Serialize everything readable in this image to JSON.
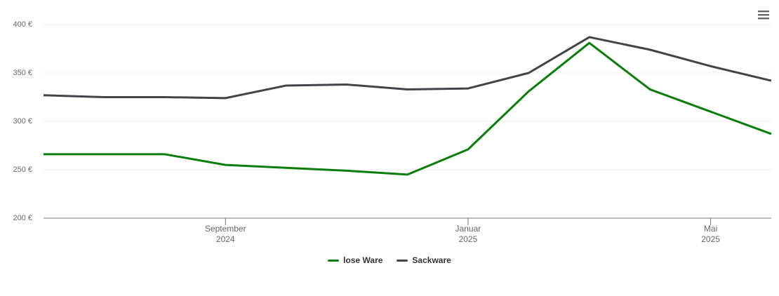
{
  "chart_data": {
    "type": "line",
    "x": [
      "2024-06",
      "2024-07",
      "2024-08",
      "2024-09",
      "2024-10",
      "2024-11",
      "2024-12",
      "2025-01",
      "2025-02",
      "2025-03",
      "2025-04",
      "2025-05",
      "2025-06"
    ],
    "series": [
      {
        "name": "lose Ware",
        "color": "#0a7d0a",
        "values": [
          266,
          266,
          266,
          255,
          252,
          249,
          245,
          271,
          331,
          381,
          333,
          310,
          287
        ]
      },
      {
        "name": "Sackware",
        "color": "#434348",
        "values": [
          327,
          325,
          325,
          324,
          337,
          338,
          333,
          334,
          350,
          387,
          374,
          357,
          342
        ]
      }
    ],
    "xlim": [
      "2024-06",
      "2025-06"
    ],
    "xticks": [
      {
        "value": "2024-09",
        "label": "September\n2024"
      },
      {
        "value": "2025-01",
        "label": "Januar\n2025"
      },
      {
        "value": "2025-05",
        "label": "Mai\n2025"
      }
    ],
    "ylim": [
      200,
      400
    ],
    "yticks": [
      {
        "value": 200,
        "label": "200 €"
      },
      {
        "value": 250,
        "label": "250 €"
      },
      {
        "value": 300,
        "label": "300 €"
      },
      {
        "value": 350,
        "label": "350 €"
      },
      {
        "value": 400,
        "label": "400 €"
      }
    ],
    "grid": true,
    "legend": "bottom"
  }
}
